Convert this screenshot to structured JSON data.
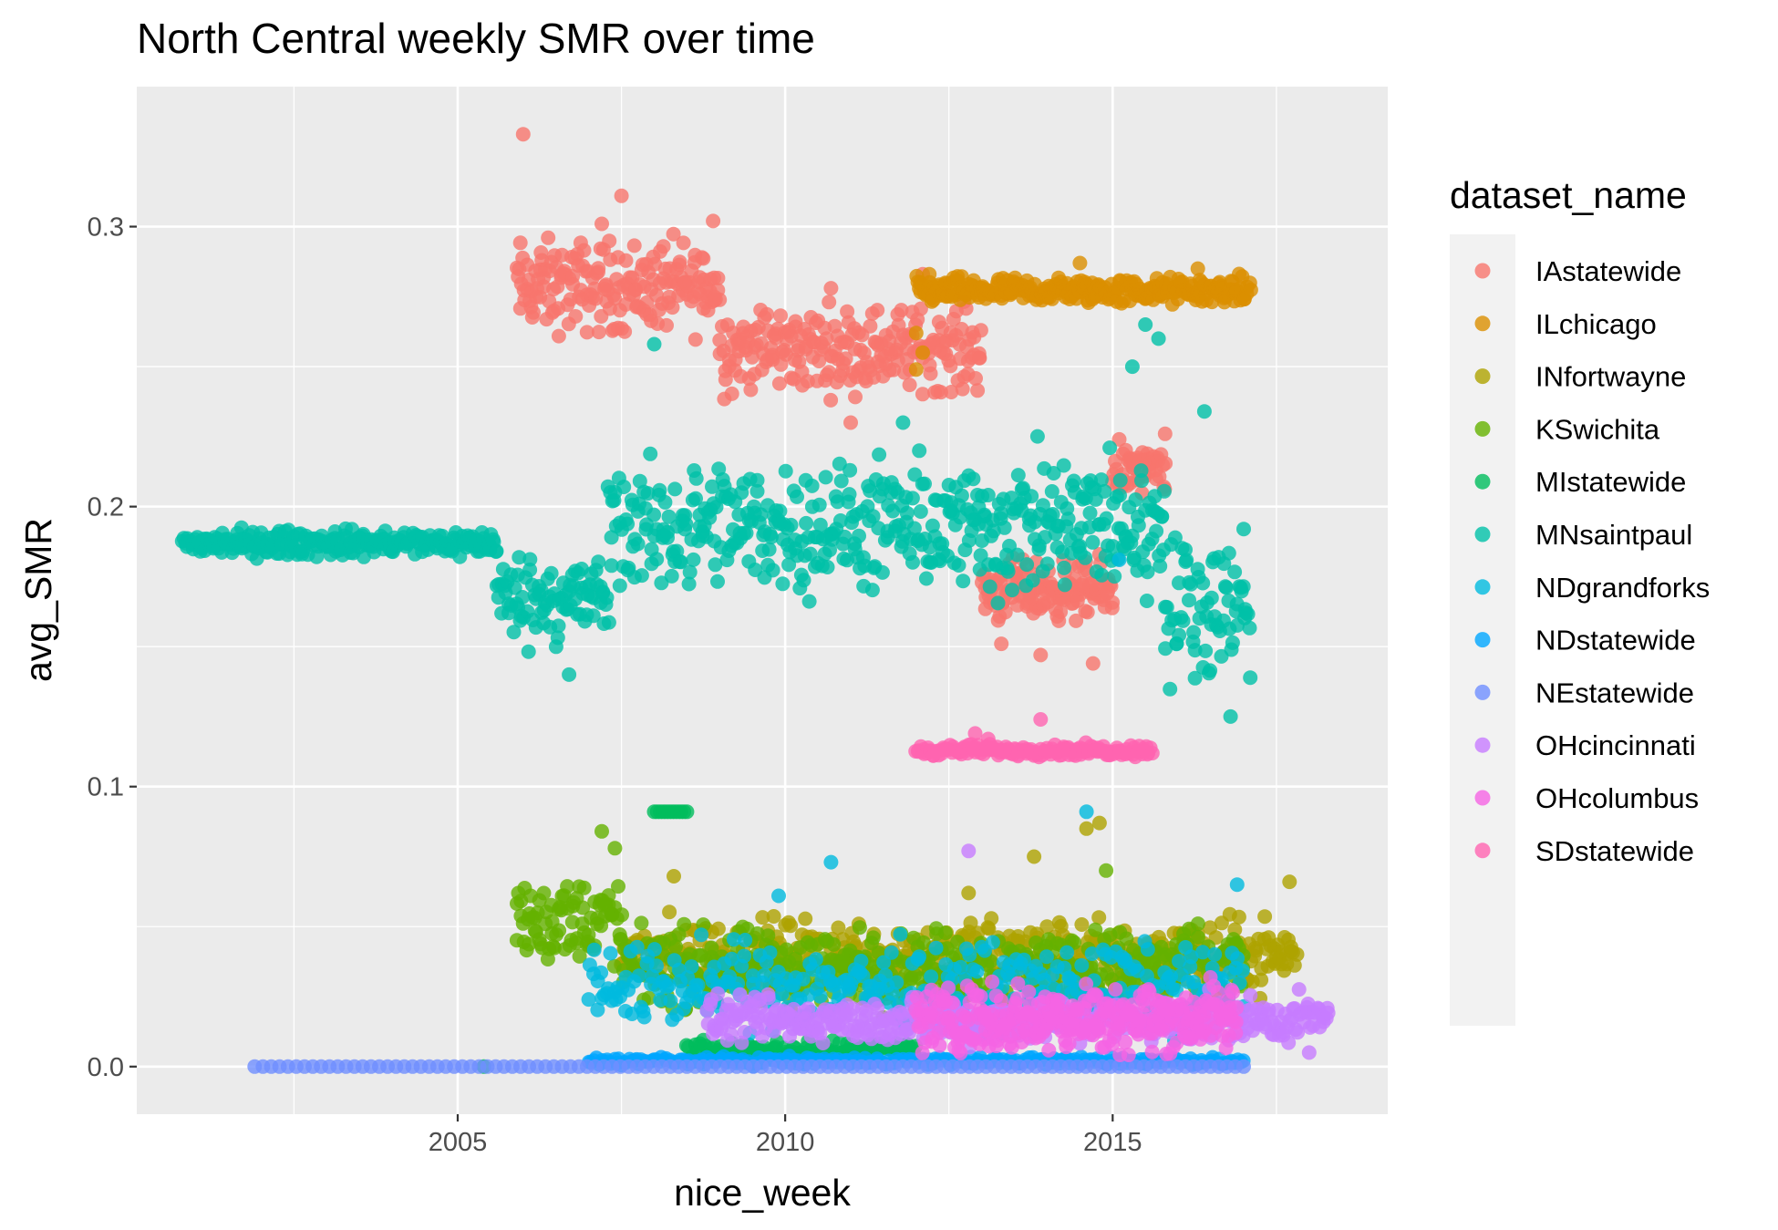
{
  "chart_data": {
    "type": "scatter",
    "title": "North Central weekly SMR over time",
    "xlabel": "nice_week",
    "ylabel": "avg_SMR",
    "x_ticks": [
      "2005",
      "2010",
      "2015"
    ],
    "x_tick_values": [
      2005,
      2010,
      2015
    ],
    "x_minor_ticks": [
      2002.5,
      2007.5,
      2012.5,
      2017.5
    ],
    "y_ticks": [
      "0.0",
      "0.1",
      "0.2",
      "0.3"
    ],
    "y_tick_values": [
      0.0,
      0.1,
      0.2,
      0.3
    ],
    "y_minor_ticks": [
      0.05,
      0.15,
      0.25
    ],
    "xlim": [
      2000.1,
      2019.2
    ],
    "ylim": [
      -0.017,
      0.35
    ],
    "grid": true,
    "legend": {
      "title": "dataset_name",
      "placement": "right"
    },
    "series": [
      {
        "name": "IAstatewide",
        "color": "#F8766D",
        "segments": [
          {
            "x0": 2005.9,
            "x1": 2009.0,
            "yMin": 0.255,
            "yMax": 0.302,
            "pattern": "noisy",
            "n": 190
          },
          {
            "x0": 2009.0,
            "x1": 2013.0,
            "yMin": 0.235,
            "yMax": 0.278,
            "pattern": "noisy",
            "n": 230
          },
          {
            "x0": 2013.0,
            "x1": 2015.0,
            "yMin": 0.155,
            "yMax": 0.185,
            "pattern": "noisy",
            "n": 140
          },
          {
            "x0": 2015.0,
            "x1": 2015.8,
            "yMin": 0.2,
            "yMax": 0.225,
            "pattern": "noisy",
            "n": 50
          }
        ],
        "extras": [
          [
            2006.0,
            0.333
          ],
          [
            2007.5,
            0.311
          ],
          [
            2007.2,
            0.301
          ],
          [
            2008.9,
            0.302
          ],
          [
            2010.7,
            0.278
          ],
          [
            2012.1,
            0.283
          ],
          [
            2013.9,
            0.147
          ],
          [
            2014.7,
            0.144
          ],
          [
            2013.3,
            0.151
          ],
          [
            2015.1,
            0.224
          ],
          [
            2015.8,
            0.226
          ],
          [
            2011.0,
            0.23
          ]
        ]
      },
      {
        "name": "ILchicago",
        "color": "#DB8E00",
        "segments": [
          {
            "x0": 2012.0,
            "x1": 2017.1,
            "yMin": 0.27,
            "yMax": 0.284,
            "pattern": "noisy",
            "n": 270
          }
        ],
        "extras": [
          [
            2012.2,
            0.283
          ],
          [
            2014.5,
            0.287
          ],
          [
            2016.3,
            0.285
          ],
          [
            2012.0,
            0.262
          ],
          [
            2012.1,
            0.255
          ],
          [
            2012.0,
            0.249
          ]
        ]
      },
      {
        "name": "INfortwayne",
        "color": "#AEA200",
        "segments": [
          {
            "x0": 2007.5,
            "x1": 2017.8,
            "yMin": 0.022,
            "yMax": 0.058,
            "pattern": "noisy",
            "n": 480
          }
        ],
        "extras": [
          [
            2014.6,
            0.085
          ],
          [
            2014.8,
            0.087
          ],
          [
            2013.8,
            0.075
          ],
          [
            2017.7,
            0.066
          ],
          [
            2012.8,
            0.062
          ],
          [
            2008.3,
            0.068
          ]
        ]
      },
      {
        "name": "KSwichita",
        "color": "#64B200",
        "segments": [
          {
            "x0": 2005.9,
            "x1": 2007.5,
            "yMin": 0.03,
            "yMax": 0.075,
            "pattern": "noisy",
            "n": 85
          },
          {
            "x0": 2007.5,
            "x1": 2017.0,
            "yMin": 0.015,
            "yMax": 0.055,
            "pattern": "noisy",
            "n": 460
          }
        ],
        "extras": [
          [
            2007.2,
            0.084
          ],
          [
            2007.4,
            0.078
          ],
          [
            2014.9,
            0.07
          ]
        ]
      },
      {
        "name": "MIstatewide",
        "color": "#00BD5C",
        "segments": [
          {
            "x0": 2008.0,
            "x1": 2008.5,
            "yMin": 0.091,
            "yMax": 0.091,
            "pattern": "line",
            "n": 12
          },
          {
            "x0": 2008.5,
            "x1": 2012.0,
            "yMin": 0.002,
            "yMax": 0.01,
            "pattern": "noisy",
            "n": 110
          }
        ],
        "extras": [
          [
            2005.4,
            0.0
          ]
        ]
      },
      {
        "name": "MNsaintpaul",
        "color": "#00C1A7",
        "segments": [
          {
            "x0": 2000.8,
            "x1": 2005.6,
            "yMin": 0.18,
            "yMax": 0.194,
            "pattern": "noisy",
            "n": 240
          },
          {
            "x0": 2005.6,
            "x1": 2007.3,
            "yMin": 0.145,
            "yMax": 0.19,
            "pattern": "noisy",
            "n": 90
          },
          {
            "x0": 2007.3,
            "x1": 2013.0,
            "yMin": 0.16,
            "yMax": 0.225,
            "pattern": "noisy",
            "n": 300
          },
          {
            "x0": 2013.0,
            "x1": 2015.8,
            "yMin": 0.155,
            "yMax": 0.23,
            "pattern": "noisy",
            "n": 150
          },
          {
            "x0": 2015.8,
            "x1": 2017.1,
            "yMin": 0.13,
            "yMax": 0.2,
            "pattern": "noisy",
            "n": 70
          }
        ],
        "extras": [
          [
            2008.0,
            0.258
          ],
          [
            2011.8,
            0.23
          ],
          [
            2015.5,
            0.265
          ],
          [
            2015.7,
            0.26
          ],
          [
            2016.4,
            0.234
          ],
          [
            2015.3,
            0.25
          ],
          [
            2006.7,
            0.14
          ],
          [
            2016.8,
            0.125
          ],
          [
            2017.0,
            0.192
          ]
        ]
      },
      {
        "name": "NDgrandforks",
        "color": "#00BADE",
        "segments": [
          {
            "x0": 2007.0,
            "x1": 2017.0,
            "yMin": 0.008,
            "yMax": 0.05,
            "pattern": "noisy",
            "n": 330
          }
        ],
        "extras": [
          [
            2014.6,
            0.091
          ],
          [
            2010.7,
            0.073
          ],
          [
            2016.9,
            0.065
          ],
          [
            2009.9,
            0.061
          ],
          [
            2015.1,
            0.181
          ]
        ]
      },
      {
        "name": "NDstatewide",
        "color": "#00A6FF",
        "segments": [
          {
            "x0": 2007.0,
            "x1": 2017.0,
            "yMin": 0.0,
            "yMax": 0.004,
            "pattern": "noisy",
            "n": 260
          }
        ],
        "extras": []
      },
      {
        "name": "NEstatewide",
        "color": "#6F8EFF",
        "segments": [
          {
            "x0": 2001.9,
            "x1": 2017.0,
            "yMin": 0.0,
            "yMax": 0.0,
            "pattern": "line",
            "n": 120
          }
        ],
        "extras": []
      },
      {
        "name": "OHcincinnati",
        "color": "#C77CFF",
        "segments": [
          {
            "x0": 2008.8,
            "x1": 2018.3,
            "yMin": 0.005,
            "yMax": 0.028,
            "pattern": "noisy",
            "n": 420
          }
        ],
        "extras": [
          [
            2012.8,
            0.077
          ],
          [
            2018.0,
            0.005
          ]
        ]
      },
      {
        "name": "OHcolumbus",
        "color": "#F564E3",
        "segments": [
          {
            "x0": 2012.0,
            "x1": 2016.9,
            "yMin": 0.0,
            "yMax": 0.035,
            "pattern": "noisy",
            "n": 300
          }
        ],
        "extras": []
      },
      {
        "name": "SDstatewide",
        "color": "#FF64B0",
        "segments": [
          {
            "x0": 2012.0,
            "x1": 2015.6,
            "yMin": 0.11,
            "yMax": 0.116,
            "pattern": "noisy",
            "n": 160
          }
        ],
        "extras": [
          [
            2012.9,
            0.119
          ],
          [
            2013.9,
            0.124
          ],
          [
            2013.1,
            0.117
          ]
        ]
      }
    ]
  }
}
